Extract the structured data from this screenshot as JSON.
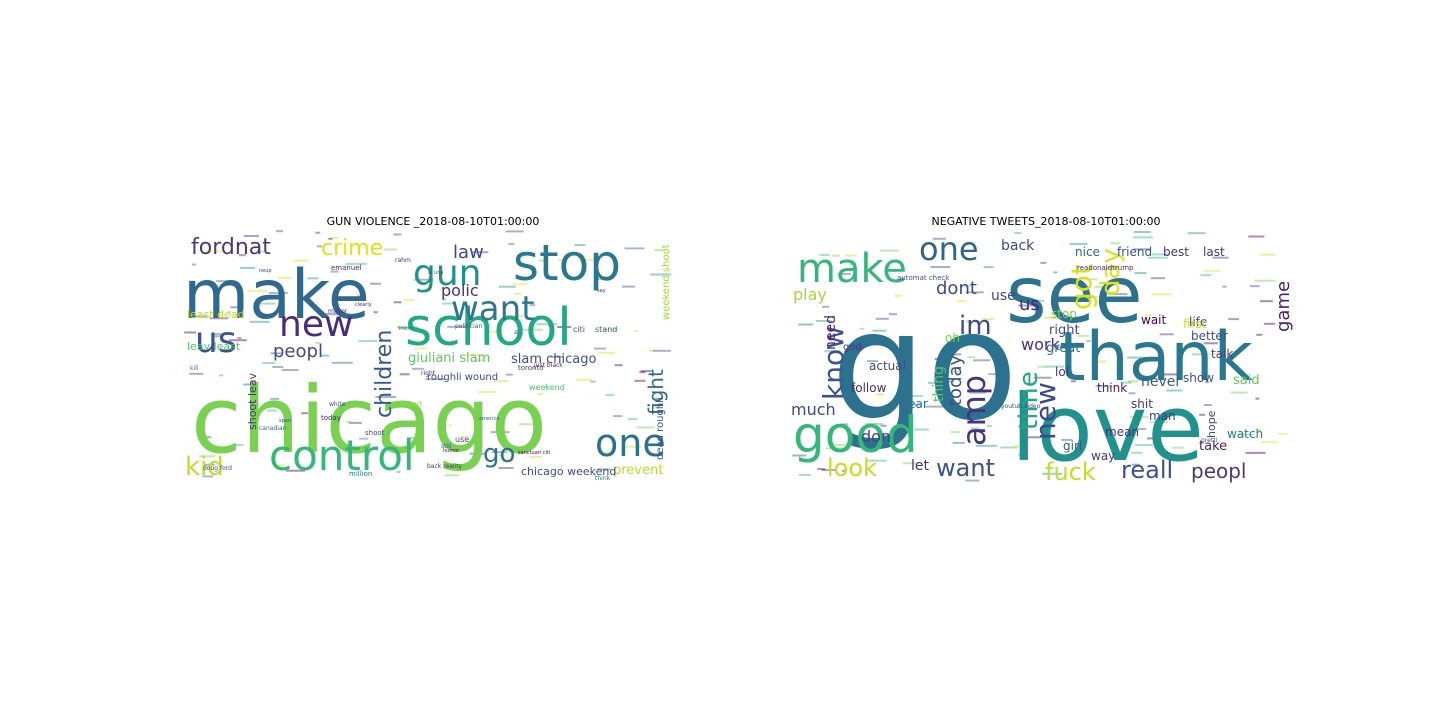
{
  "figure": {
    "panels": [
      {
        "title": "GUN VIOLENCE _2018-08-10T01:00:00",
        "words": [
          {
            "text": "chicago",
            "color": "#7ad151"
          },
          {
            "text": "make",
            "color": "#31688e"
          },
          {
            "text": "school",
            "color": "#22a884"
          },
          {
            "text": "stop",
            "color": "#2a788e"
          },
          {
            "text": "control",
            "color": "#35b779"
          },
          {
            "text": "gun",
            "color": "#21918c"
          },
          {
            "text": "new",
            "color": "#472d7b"
          },
          {
            "text": "want",
            "color": "#2a788e"
          },
          {
            "text": "one",
            "color": "#2c718e"
          },
          {
            "text": "us",
            "color": "#3b528b"
          },
          {
            "text": "kid",
            "color": "#bddf26"
          },
          {
            "text": "children",
            "color": "#38598c"
          },
          {
            "text": "fordnat",
            "color": "#443983"
          },
          {
            "text": "peopl",
            "color": "#3e4a89"
          },
          {
            "text": "crime",
            "color": "#dde318"
          },
          {
            "text": "fight",
            "color": "#31688e"
          },
          {
            "text": "go",
            "color": "#2c718e"
          },
          {
            "text": "law",
            "color": "#414487"
          },
          {
            "text": "polic",
            "color": "#46327e"
          },
          {
            "text": "giuliani slam",
            "color": "#5ec962"
          },
          {
            "text": "slam chicago",
            "color": "#3b528b"
          },
          {
            "text": "prevent",
            "color": "#b5de2b"
          },
          {
            "text": "chicago weekend",
            "color": "#3e4989"
          },
          {
            "text": "leav least",
            "color": "#52c569"
          },
          {
            "text": "least dead",
            "color": "#b8de29"
          },
          {
            "text": "weekend shoot",
            "color": "#9fda3a"
          },
          {
            "text": "dead roughli",
            "color": "#3b528b"
          },
          {
            "text": "shoot leav",
            "color": "#46337f"
          },
          {
            "text": "roughli wound",
            "color": "#3e4a89"
          },
          {
            "text": "emanuel",
            "color": "#482878"
          },
          {
            "text": "citi",
            "color": "#375a8c"
          },
          {
            "text": "stand",
            "color": "#33638d"
          },
          {
            "text": "weekend",
            "color": "#48c16e"
          },
          {
            "text": "use",
            "color": "#3f4788"
          },
          {
            "text": "today",
            "color": "#481f70"
          },
          {
            "text": "million",
            "color": "#2a778e"
          },
          {
            "text": "shoot",
            "color": "#404588"
          },
          {
            "text": "toronto",
            "color": "#453882"
          },
          {
            "text": "report",
            "color": "#9bd93c"
          },
          {
            "text": "politician",
            "color": "#3a548c"
          },
          {
            "text": "doug ford",
            "color": "#3e4989"
          },
          {
            "text": "rahm",
            "color": "#482475"
          },
          {
            "text": "back reality",
            "color": "#46327e"
          },
          {
            "text": "just black",
            "color": "#481a6c"
          },
          {
            "text": "white",
            "color": "#414487"
          },
          {
            "text": "canadian",
            "color": "#31688e"
          },
          {
            "text": "think",
            "color": "#2c718e"
          },
          {
            "text": "mayor",
            "color": "#482878"
          },
          {
            "text": "stiii",
            "color": "#3b528b"
          },
          {
            "text": "right",
            "color": "#46307e"
          },
          {
            "text": "kill",
            "color": "#24868e"
          },
          {
            "text": "sanctuari citi",
            "color": "#440154"
          },
          {
            "text": "america",
            "color": "#33638d"
          },
          {
            "text": "ai una",
            "color": "#3d4d8a"
          },
          {
            "text": "dont",
            "color": "#355f8d"
          },
          {
            "text": "say",
            "color": "#472c7a"
          },
          {
            "text": "inicio",
            "color": "#31688e"
          },
          {
            "text": "neup",
            "color": "#414487"
          },
          {
            "text": "humor",
            "color": "#440154"
          },
          {
            "text": "span",
            "color": "#3f4889"
          },
          {
            "text": "clearly",
            "color": "#46337f"
          }
        ]
      },
      {
        "title": "NEGATIVE TWEETS_2018-08-10T01:00:00",
        "words": [
          {
            "text": "go",
            "color": "#2c718e"
          },
          {
            "text": "love",
            "color": "#21918c"
          },
          {
            "text": "see",
            "color": "#2c728e"
          },
          {
            "text": "thank",
            "color": "#2a788e"
          },
          {
            "text": "good",
            "color": "#35b779"
          },
          {
            "text": "make",
            "color": "#35b779"
          },
          {
            "text": "one",
            "color": "#33638d"
          },
          {
            "text": "amp",
            "color": "#46327e"
          },
          {
            "text": "know",
            "color": "#3b528b"
          },
          {
            "text": "got",
            "color": "#d8e219"
          },
          {
            "text": "im",
            "color": "#3e4a89"
          },
          {
            "text": "new",
            "color": "#3f4889"
          },
          {
            "text": "time",
            "color": "#22a884"
          },
          {
            "text": "want",
            "color": "#3b528b"
          },
          {
            "text": "fuck",
            "color": "#bddf26"
          },
          {
            "text": "reall",
            "color": "#3b528b"
          },
          {
            "text": "peopl",
            "color": "#443983"
          },
          {
            "text": "look",
            "color": "#c2df23"
          },
          {
            "text": "day",
            "color": "#dde318"
          },
          {
            "text": "game",
            "color": "#481f70"
          },
          {
            "text": "much",
            "color": "#3f4788"
          },
          {
            "text": "today",
            "color": "#3b528b"
          },
          {
            "text": "work",
            "color": "#46337f"
          },
          {
            "text": "dont",
            "color": "#3e4989"
          },
          {
            "text": "use",
            "color": "#3f4889"
          },
          {
            "text": "us",
            "color": "#482878"
          },
          {
            "text": "back",
            "color": "#3e4a89"
          },
          {
            "text": "play",
            "color": "#a2da37"
          },
          {
            "text": "need",
            "color": "#482475"
          },
          {
            "text": "thing",
            "color": "#54c568"
          },
          {
            "text": "don",
            "color": "#414487"
          },
          {
            "text": "let",
            "color": "#472d7b"
          },
          {
            "text": "never",
            "color": "#38598c"
          },
          {
            "text": "nice",
            "color": "#31688e"
          },
          {
            "text": "friend",
            "color": "#3b528b"
          },
          {
            "text": "best",
            "color": "#46327e"
          },
          {
            "text": "last",
            "color": "#46337f"
          },
          {
            "text": "life",
            "color": "#3e4989"
          },
          {
            "text": "talk",
            "color": "#3f4788"
          },
          {
            "text": "stop",
            "color": "#7ad151"
          },
          {
            "text": "right",
            "color": "#3e4a89"
          },
          {
            "text": "great",
            "color": "#2c718e"
          },
          {
            "text": "wait",
            "color": "#440154"
          },
          {
            "text": "first",
            "color": "#c5e021"
          },
          {
            "text": "better",
            "color": "#3b528b"
          },
          {
            "text": "actual",
            "color": "#3e4989"
          },
          {
            "text": "follow",
            "color": "#472d7b"
          },
          {
            "text": "year",
            "color": "#2c718e"
          },
          {
            "text": "god",
            "color": "#443983"
          },
          {
            "text": "lol",
            "color": "#46337f"
          },
          {
            "text": "think",
            "color": "#481a6c"
          },
          {
            "text": "show",
            "color": "#3b528b"
          },
          {
            "text": "shit",
            "color": "#46327e"
          },
          {
            "text": "man",
            "color": "#433e85"
          },
          {
            "text": "said",
            "color": "#5ec962"
          },
          {
            "text": "take",
            "color": "#482173"
          },
          {
            "text": "hope",
            "color": "#3f4889"
          },
          {
            "text": "watch",
            "color": "#2a788e"
          },
          {
            "text": "way",
            "color": "#453882"
          },
          {
            "text": "girl",
            "color": "#38598c"
          },
          {
            "text": "mean",
            "color": "#46307e"
          },
          {
            "text": "oh",
            "color": "#7ad151"
          },
          {
            "text": "youtub video",
            "color": "#3e4989"
          },
          {
            "text": "automat check",
            "color": "#3b528b"
          },
          {
            "text": "readonaldtrump",
            "color": "#482878"
          },
          {
            "text": "pretti",
            "color": "#3b528b"
          }
        ]
      }
    ]
  }
}
